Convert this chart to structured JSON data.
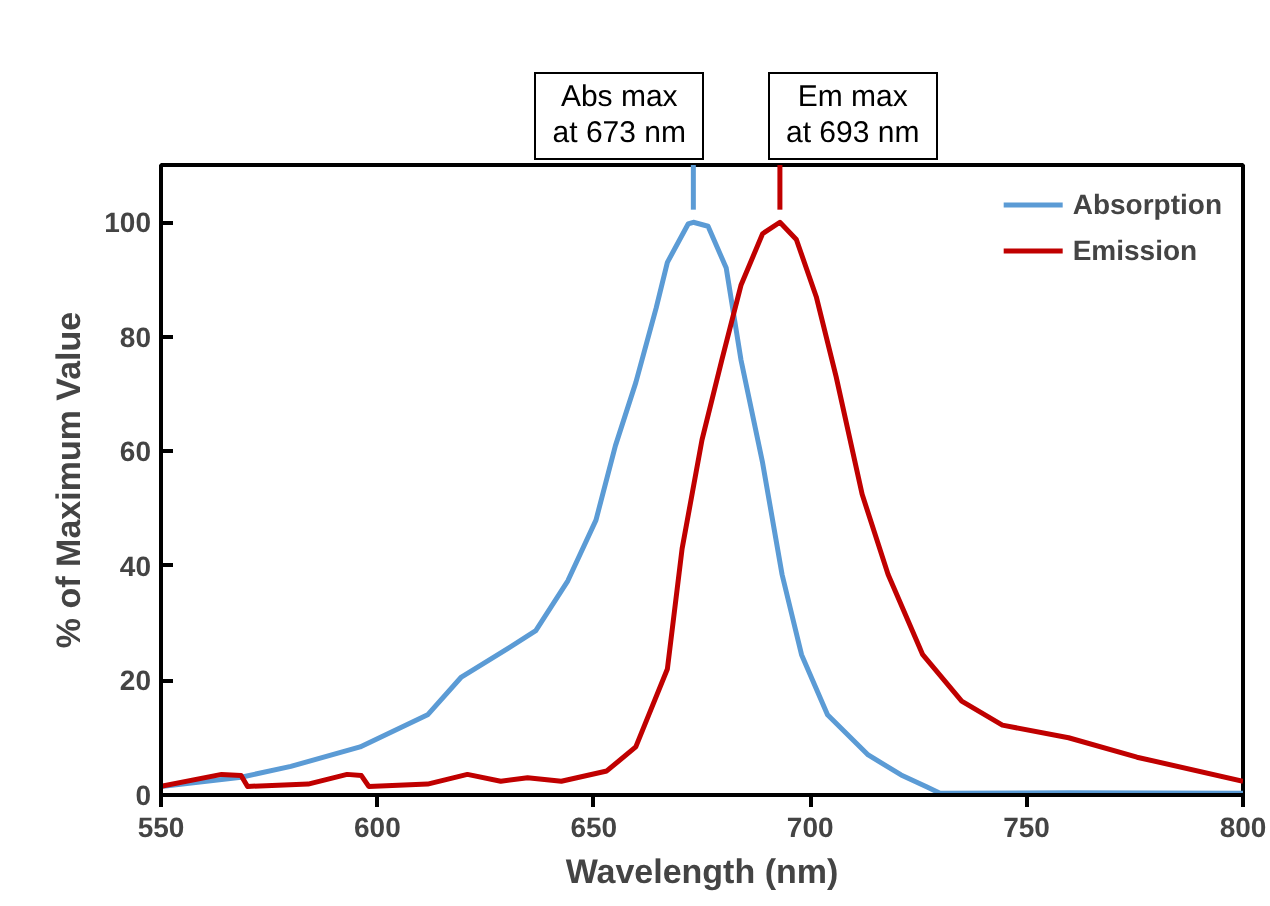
{
  "chart_data": {
    "type": "line",
    "xlabel": "Wavelength (nm)",
    "ylabel": "% of Maximum Value",
    "xlim": [
      550,
      800
    ],
    "ylim": [
      0,
      110
    ],
    "xticks": [
      550,
      600,
      650,
      700,
      750,
      800
    ],
    "yticks": [
      0,
      20,
      40,
      60,
      80,
      100
    ],
    "grid": false,
    "legend": "top right",
    "marker": "none",
    "line_style": "solid",
    "annotations": [
      {
        "text": "Abs max\nat 673 nm",
        "x": 673,
        "y": 100
      },
      {
        "text": "Em max\nat 693 nm",
        "x": 693,
        "y": 100
      }
    ],
    "series": [
      {
        "name": "Absorption",
        "color": "#5b9bd5",
        "x": [
          550,
          568.5,
          580,
          596,
          611.6,
          619.4,
          630,
          636.6,
          644,
          650.5,
          655,
          659.7,
          664.4,
          667,
          671.8,
          673,
          676.4,
          680.6,
          684,
          689,
          693.5,
          698,
          704,
          713.4,
          721,
          727,
          730,
          760,
          800
        ],
        "values": [
          1.5,
          3.1,
          5,
          8.4,
          14,
          20.6,
          25.5,
          28.7,
          37.4,
          48,
          61,
          72,
          85,
          93,
          99.7,
          100,
          99.3,
          92,
          76,
          58,
          38.5,
          24.5,
          14,
          7,
          3.5,
          1.4,
          0.3,
          0.4,
          0.3
        ]
      },
      {
        "name": "Emission",
        "color": "#c00000",
        "x": [
          550,
          564,
          568.5,
          570,
          584,
          593,
          596.3,
          598,
          611.6,
          620.8,
          628.5,
          634.7,
          642.5,
          653,
          659.7,
          667,
          670.4,
          675,
          679.6,
          684,
          689,
          693,
          696.8,
          701.4,
          706,
          712,
          718,
          726,
          735,
          744.4,
          759.7,
          775.5,
          800
        ],
        "values": [
          1.5,
          3.6,
          3.4,
          1.5,
          1.9,
          3.6,
          3.4,
          1.5,
          1.9,
          3.6,
          2.4,
          3,
          2.4,
          4.2,
          8.4,
          22,
          43,
          62,
          76,
          89,
          98,
          100,
          97,
          87,
          73,
          52.5,
          38.5,
          24.5,
          16.4,
          12.2,
          10,
          6.6,
          2.4
        ]
      }
    ]
  }
}
